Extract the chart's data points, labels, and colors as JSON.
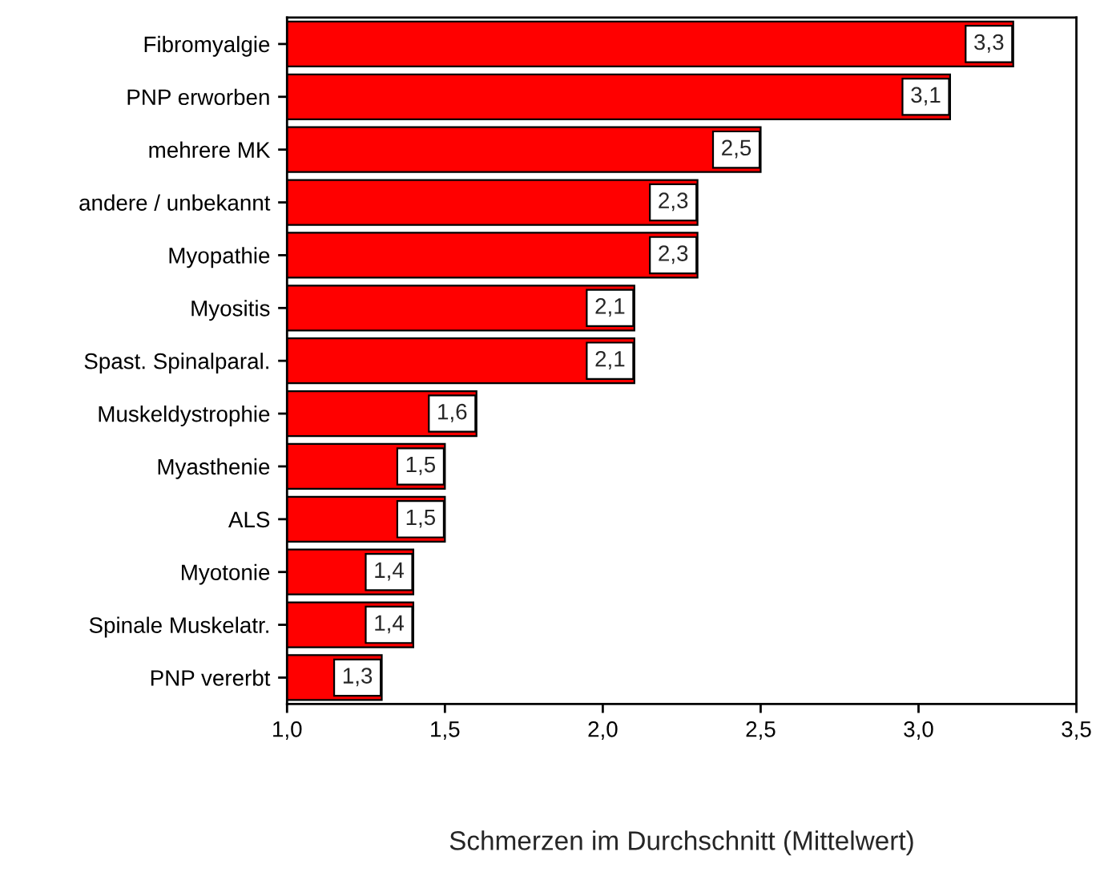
{
  "chart_data": {
    "type": "bar",
    "orientation": "horizontal",
    "xlabel": "Schmerzen im Durchschnitt (Mittelwert)",
    "categories": [
      "Fibromyalgie",
      "PNP erworben",
      "mehrere MK",
      "andere / unbekannt",
      "Myopathie",
      "Myositis",
      "Spast. Spinalparal.",
      "Muskeldystrophie",
      "Myasthenie",
      "ALS",
      "Myotonie",
      "Spinale Muskelatr.",
      "PNP vererbt"
    ],
    "values": [
      3.3,
      3.1,
      2.5,
      2.3,
      2.3,
      2.1,
      2.1,
      1.6,
      1.5,
      1.5,
      1.4,
      1.4,
      1.3
    ],
    "value_labels": [
      "3,3",
      "3,1",
      "2,5",
      "2,3",
      "2,3",
      "2,1",
      "2,1",
      "1,6",
      "1,5",
      "1,5",
      "1,4",
      "1,4",
      "1,3"
    ],
    "color": "#ff0000",
    "xlim": [
      1.0,
      3.5
    ],
    "xticks": [
      {
        "value": 1.0,
        "label": "1,0"
      },
      {
        "value": 1.5,
        "label": "1,5"
      },
      {
        "value": 2.0,
        "label": "2,0"
      },
      {
        "value": 2.5,
        "label": "2,5"
      },
      {
        "value": 3.0,
        "label": "3,0"
      },
      {
        "value": 3.5,
        "label": "3,5"
      }
    ],
    "grid": false,
    "legend": false
  }
}
